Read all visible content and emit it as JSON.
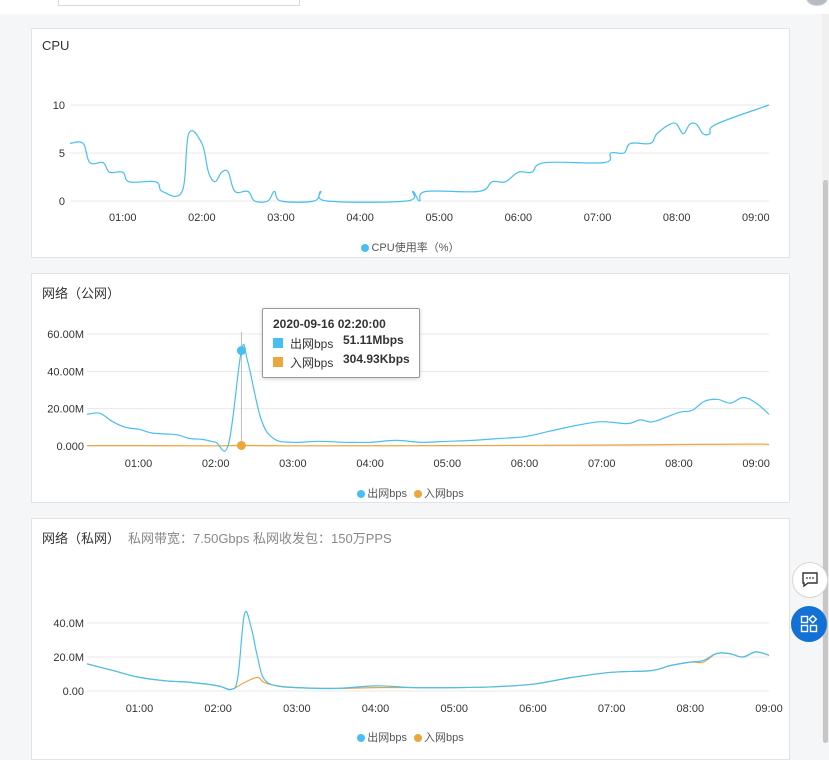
{
  "colors": {
    "out": "#48bff2",
    "in": "#eda63c",
    "grid": "#e8e8e8",
    "axis_text": "#333333",
    "accent": "#1270d6"
  },
  "icons": {
    "chat": "chat-icon",
    "apps": "apps-icon"
  },
  "x_ticks": [
    "01:00",
    "02:00",
    "03:00",
    "04:00",
    "05:00",
    "06:00",
    "07:00",
    "08:00",
    "09:00"
  ],
  "cpu": {
    "title": "CPU",
    "legend": "CPU使用率（%）"
  },
  "net_public": {
    "title": "网络（公网）",
    "legend_out": "出网bps",
    "legend_in": "入网bps"
  },
  "net_private": {
    "title": "网络（私网）",
    "subtitle": "私网带宽：7.50Gbps 私网收发包：150万PPS",
    "legend_out": "出网bps",
    "legend_in": "入网bps"
  },
  "tooltip": {
    "time": "2020-09-16 02:20:00",
    "out_label": "出网bps",
    "out_value": "51.11Mbps",
    "in_label": "入网bps",
    "in_value": "304.93Kbps"
  },
  "chart_data": [
    {
      "type": "area",
      "title": "CPU",
      "x_range": [
        "00:20",
        "09:10"
      ],
      "x_ticks": [
        "01:00",
        "02:00",
        "03:00",
        "04:00",
        "05:00",
        "06:00",
        "07:00",
        "08:00",
        "09:00"
      ],
      "y_ticks": [
        "0",
        "5",
        "10"
      ],
      "ylim": [
        0,
        10
      ],
      "series": [
        {
          "name": "CPU使用率（%）",
          "color": "#48bff2",
          "points": [
            [
              "00:20",
              6
            ],
            [
              "00:30",
              6
            ],
            [
              "00:35",
              4
            ],
            [
              "00:45",
              4
            ],
            [
              "00:50",
              3
            ],
            [
              "01:00",
              3
            ],
            [
              "01:05",
              2
            ],
            [
              "01:25",
              2
            ],
            [
              "01:30",
              1
            ],
            [
              "01:45",
              1
            ],
            [
              "01:50",
              7
            ],
            [
              "02:00",
              6
            ],
            [
              "02:05",
              3
            ],
            [
              "02:10",
              2
            ],
            [
              "02:15",
              3
            ],
            [
              "02:20",
              3
            ],
            [
              "02:25",
              1
            ],
            [
              "02:35",
              1
            ],
            [
              "02:40",
              0
            ],
            [
              "02:50",
              0
            ],
            [
              "02:55",
              1
            ],
            [
              "03:00",
              0
            ],
            [
              "03:25",
              0
            ],
            [
              "03:30",
              1
            ],
            [
              "03:35",
              0
            ],
            [
              "04:35",
              0
            ],
            [
              "04:40",
              1
            ],
            [
              "04:45",
              0
            ],
            [
              "04:50",
              1
            ],
            [
              "05:30",
              1
            ],
            [
              "05:40",
              2
            ],
            [
              "05:50",
              2
            ],
            [
              "06:00",
              3
            ],
            [
              "06:10",
              3
            ],
            [
              "06:20",
              4
            ],
            [
              "07:05",
              4
            ],
            [
              "07:10",
              5
            ],
            [
              "07:20",
              5
            ],
            [
              "07:25",
              6
            ],
            [
              "07:40",
              6
            ],
            [
              "07:45",
              7
            ],
            [
              "07:55",
              8
            ],
            [
              "08:00",
              8
            ],
            [
              "08:05",
              7
            ],
            [
              "08:10",
              8
            ],
            [
              "08:15",
              8
            ],
            [
              "08:20",
              7
            ],
            [
              "08:25",
              7
            ],
            [
              "08:30",
              8
            ],
            [
              "09:10",
              10
            ]
          ]
        }
      ],
      "legend": "bottom"
    },
    {
      "type": "area",
      "title": "网络（公网）",
      "x_range": [
        "00:20",
        "09:10"
      ],
      "x_ticks": [
        "01:00",
        "02:00",
        "03:00",
        "04:00",
        "05:00",
        "06:00",
        "07:00",
        "08:00",
        "09:00"
      ],
      "y_ticks": [
        "0.000",
        "20.00M",
        "40.00M",
        "60.00M"
      ],
      "ylim": [
        0,
        60
      ],
      "y_unit": "Mbps",
      "series": [
        {
          "name": "出网bps",
          "color": "#48bff2",
          "points": [
            [
              "00:20",
              17
            ],
            [
              "00:30",
              17.5
            ],
            [
              "00:40",
              13
            ],
            [
              "00:50",
              10
            ],
            [
              "01:00",
              9
            ],
            [
              "01:10",
              7
            ],
            [
              "01:20",
              6.5
            ],
            [
              "01:30",
              6
            ],
            [
              "01:40",
              4
            ],
            [
              "01:50",
              3.5
            ],
            [
              "02:00",
              2
            ],
            [
              "02:10",
              1
            ],
            [
              "02:20",
              51.11
            ],
            [
              "02:25",
              45
            ],
            [
              "02:35",
              15
            ],
            [
              "02:45",
              4
            ],
            [
              "03:00",
              2
            ],
            [
              "03:20",
              2.5
            ],
            [
              "03:40",
              2
            ],
            [
              "04:00",
              2
            ],
            [
              "04:20",
              3
            ],
            [
              "04:40",
              2
            ],
            [
              "05:00",
              2.5
            ],
            [
              "05:20",
              3
            ],
            [
              "05:40",
              4
            ],
            [
              "06:00",
              5
            ],
            [
              "06:20",
              8
            ],
            [
              "06:40",
              11
            ],
            [
              "07:00",
              13
            ],
            [
              "07:20",
              12
            ],
            [
              "07:30",
              14
            ],
            [
              "07:40",
              13
            ],
            [
              "08:00",
              18
            ],
            [
              "08:10",
              19
            ],
            [
              "08:20",
              24
            ],
            [
              "08:30",
              25
            ],
            [
              "08:40",
              23
            ],
            [
              "08:50",
              26
            ],
            [
              "09:00",
              23
            ],
            [
              "09:10",
              17
            ]
          ]
        },
        {
          "name": "入网bps",
          "color": "#eda63c",
          "points": [
            [
              "00:20",
              0.2
            ],
            [
              "01:00",
              0.2
            ],
            [
              "02:00",
              0.1
            ],
            [
              "02:20",
              0.3
            ],
            [
              "03:00",
              0.1
            ],
            [
              "05:00",
              0.2
            ],
            [
              "07:00",
              0.5
            ],
            [
              "08:00",
              0.8
            ],
            [
              "09:00",
              1
            ],
            [
              "09:10",
              0.8
            ]
          ]
        }
      ],
      "highlight_x": "02:20",
      "legend": "bottom"
    },
    {
      "type": "area",
      "title": "网络（私网）",
      "x_range": [
        "00:20",
        "09:00"
      ],
      "x_ticks": [
        "01:00",
        "02:00",
        "03:00",
        "04:00",
        "05:00",
        "06:00",
        "07:00",
        "08:00",
        "09:00"
      ],
      "y_ticks": [
        "0.00",
        "20.0M",
        "40.0M"
      ],
      "ylim": [
        0,
        50
      ],
      "y_unit": "Mbps",
      "series": [
        {
          "name": "出网bps",
          "color": "#48bff2",
          "points": [
            [
              "00:20",
              16
            ],
            [
              "00:40",
              12
            ],
            [
              "01:00",
              8
            ],
            [
              "01:20",
              6
            ],
            [
              "01:40",
              5
            ],
            [
              "02:00",
              3
            ],
            [
              "02:10",
              1
            ],
            [
              "02:15",
              8
            ],
            [
              "02:20",
              45
            ],
            [
              "02:25",
              38
            ],
            [
              "02:30",
              20
            ],
            [
              "02:35",
              7
            ],
            [
              "02:45",
              3
            ],
            [
              "03:00",
              2
            ],
            [
              "03:30",
              1.5
            ],
            [
              "04:00",
              3
            ],
            [
              "04:30",
              2
            ],
            [
              "05:00",
              2
            ],
            [
              "05:30",
              2.5
            ],
            [
              "06:00",
              4
            ],
            [
              "06:30",
              8
            ],
            [
              "07:00",
              11
            ],
            [
              "07:30",
              12
            ],
            [
              "07:45",
              15
            ],
            [
              "08:00",
              17
            ],
            [
              "08:10",
              18
            ],
            [
              "08:20",
              22
            ],
            [
              "08:30",
              22
            ],
            [
              "08:40",
              20
            ],
            [
              "08:50",
              23
            ],
            [
              "09:00",
              21
            ]
          ]
        },
        {
          "name": "入网bps",
          "color": "#eda63c",
          "points": [
            [
              "00:20",
              16
            ],
            [
              "00:40",
              12
            ],
            [
              "01:00",
              8
            ],
            [
              "01:20",
              6
            ],
            [
              "01:40",
              5
            ],
            [
              "02:00",
              3
            ],
            [
              "02:10",
              1
            ],
            [
              "02:20",
              5
            ],
            [
              "02:30",
              8
            ],
            [
              "02:35",
              5
            ],
            [
              "02:45",
              3
            ],
            [
              "03:00",
              2
            ],
            [
              "03:30",
              1.5
            ],
            [
              "04:00",
              2
            ],
            [
              "04:30",
              2
            ],
            [
              "05:00",
              2
            ],
            [
              "05:30",
              2.5
            ],
            [
              "06:00",
              4
            ],
            [
              "06:30",
              8
            ],
            [
              "07:00",
              11
            ],
            [
              "07:30",
              12
            ],
            [
              "07:45",
              15
            ],
            [
              "08:00",
              17
            ],
            [
              "08:10",
              17
            ],
            [
              "08:20",
              22
            ],
            [
              "08:30",
              22
            ],
            [
              "08:40",
              20
            ],
            [
              "08:50",
              23
            ],
            [
              "09:00",
              21
            ]
          ]
        }
      ],
      "legend": "bottom"
    }
  ]
}
